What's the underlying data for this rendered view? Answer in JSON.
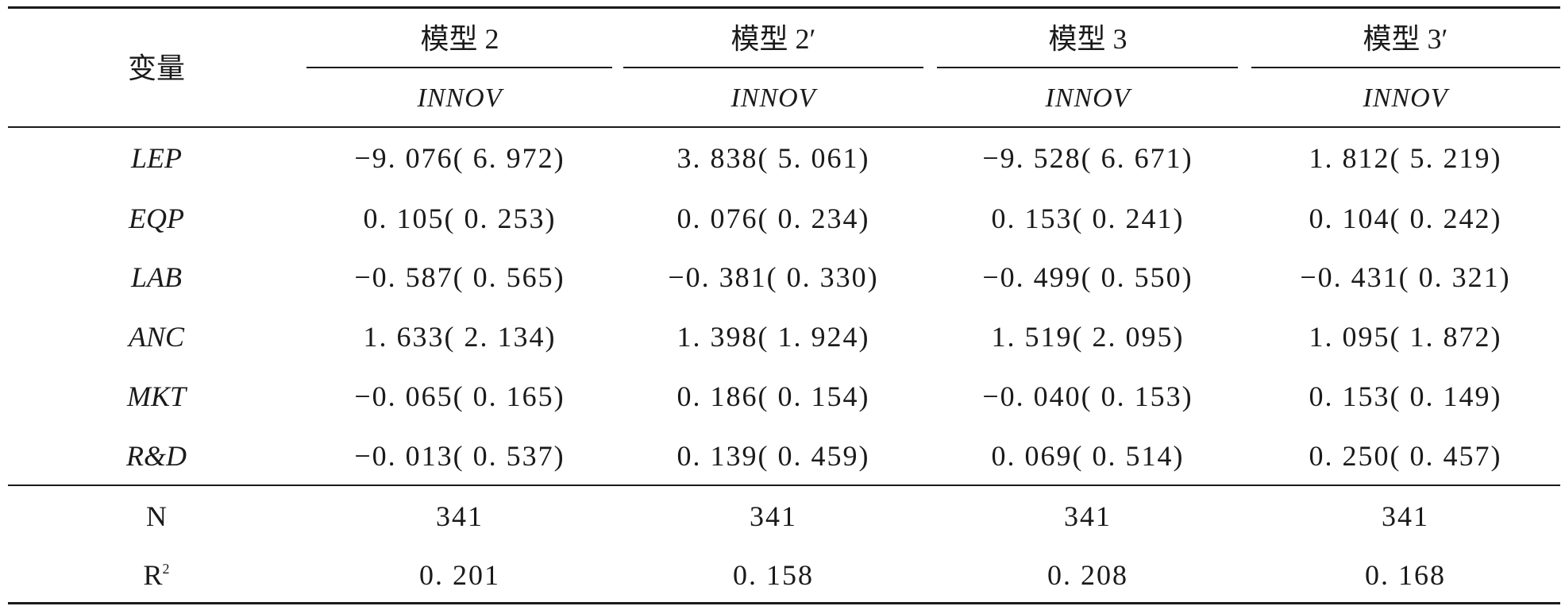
{
  "header": {
    "variable_label": "变量",
    "models": [
      "模型 2",
      "模型 2′",
      "模型 3",
      "模型 3′"
    ],
    "dependent": [
      "INNOV",
      "INNOV",
      "INNOV",
      "INNOV"
    ]
  },
  "rows": [
    {
      "name": "LEP",
      "values": [
        "−9. 076( 6. 972)",
        "3. 838( 5. 061)",
        "−9. 528( 6. 671)",
        "1. 812( 5. 219)"
      ]
    },
    {
      "name": "EQP",
      "values": [
        "0. 105( 0. 253)",
        "0. 076( 0. 234)",
        "0. 153( 0. 241)",
        "0. 104( 0. 242)"
      ]
    },
    {
      "name": "LAB",
      "values": [
        "−0. 587( 0. 565)",
        "−0. 381( 0. 330)",
        "−0. 499( 0. 550)",
        "−0. 431( 0. 321)"
      ]
    },
    {
      "name": "ANC",
      "values": [
        "1. 633( 2. 134)",
        "1. 398( 1. 924)",
        "1. 519( 2. 095)",
        "1. 095( 1. 872)"
      ]
    },
    {
      "name": "MKT",
      "values": [
        "−0. 065( 0. 165)",
        "0. 186( 0. 154)",
        "−0. 040( 0. 153)",
        "0. 153( 0. 149)"
      ]
    },
    {
      "name": "R&D",
      "values": [
        "−0. 013( 0. 537)",
        "0. 139( 0. 459)",
        "0. 069( 0. 514)",
        "0. 250( 0. 457)"
      ]
    }
  ],
  "stats": [
    {
      "name": "N",
      "values": [
        "341",
        "341",
        "341",
        "341"
      ]
    },
    {
      "name_base": "R",
      "name_sup": "2",
      "values": [
        "0. 201",
        "0. 158",
        "0. 208",
        "0. 168"
      ]
    }
  ]
}
